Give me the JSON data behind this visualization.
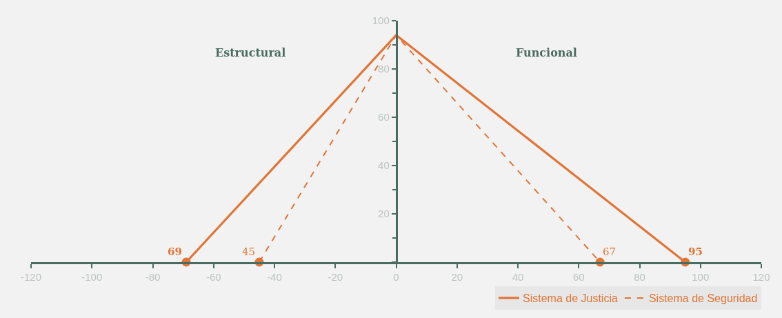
{
  "chart_data": {
    "type": "line",
    "annotations": [
      "Estructural",
      "Funcional",
      {
        "text": "69",
        "x": -69,
        "y": 0
      },
      {
        "text": "95",
        "x": 95,
        "y": 0
      },
      {
        "text": "45",
        "x": -45,
        "y": 0
      },
      {
        "text": "67",
        "x": 67,
        "y": 0
      }
    ],
    "series": [
      {
        "name": "Sistema de Justicia",
        "color": "#e07538",
        "line_style": "solid",
        "x": [
          -69,
          0,
          95
        ],
        "values": [
          0,
          94,
          0
        ]
      },
      {
        "name": "Sistema de Seguridad",
        "color": "#e07538",
        "line_style": "dashed",
        "x": [
          -45,
          0,
          67
        ],
        "values": [
          0,
          94,
          0
        ]
      }
    ],
    "xlim": [
      -120,
      120
    ],
    "xticks": [
      -120,
      -100,
      -80,
      -60,
      -40,
      -20,
      0,
      20,
      40,
      60,
      80,
      100,
      120
    ],
    "ylim": [
      0,
      100
    ],
    "yticks": [
      {
        "value": 0,
        "label": null
      },
      20,
      40,
      60,
      80,
      100
    ],
    "grid": false,
    "legend": "bottom right",
    "marker": "circle"
  }
}
